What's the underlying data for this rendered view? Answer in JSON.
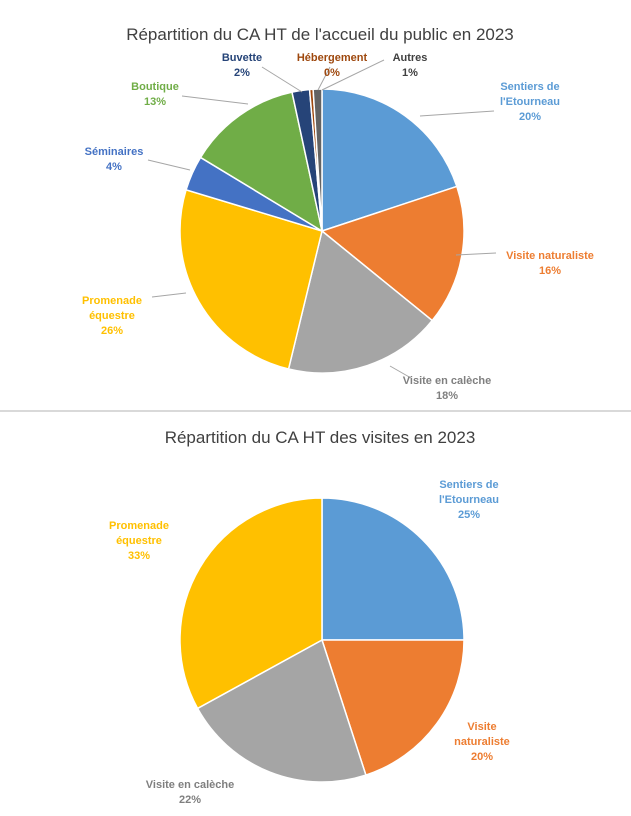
{
  "chart_data": [
    {
      "type": "pie",
      "title": "Répartition du CA HT de l'accueil du public en 2023",
      "slices": [
        {
          "label": "Sentiers de l'Etourneau",
          "lines": [
            "Sentiers de",
            "l'Etourneau"
          ],
          "value": 20,
          "pct": "20%",
          "color": "#5B9BD5"
        },
        {
          "label": "Visite naturaliste",
          "lines": [
            "Visite naturaliste"
          ],
          "value": 16,
          "pct": "16%",
          "color": "#ED7D31"
        },
        {
          "label": "Visite en calèche",
          "lines": [
            "Visite en calèche"
          ],
          "value": 18,
          "pct": "18%",
          "color": "#A5A5A5"
        },
        {
          "label": "Promenade équestre",
          "lines": [
            "Promenade",
            "équestre"
          ],
          "value": 26,
          "pct": "26%",
          "color": "#FFC000"
        },
        {
          "label": "Séminaires",
          "lines": [
            "Séminaires"
          ],
          "value": 4,
          "pct": "4%",
          "color": "#4472C4"
        },
        {
          "label": "Boutique",
          "lines": [
            "Boutique"
          ],
          "value": 13,
          "pct": "13%",
          "color": "#70AD47"
        },
        {
          "label": "Buvette",
          "lines": [
            "Buvette"
          ],
          "value": 2,
          "pct": "2%",
          "color": "#264478"
        },
        {
          "label": "Hébergement",
          "lines": [
            "Hébergement"
          ],
          "value": 0.4,
          "pct": "0%",
          "color": "#9E480E"
        },
        {
          "label": "Autres",
          "lines": [
            "Autres"
          ],
          "value": 1,
          "pct": "1%",
          "color": "#636363"
        }
      ]
    },
    {
      "type": "pie",
      "title": "Répartition du CA HT des visites en 2023",
      "slices": [
        {
          "label": "Sentiers de l'Etourneau",
          "lines": [
            "Sentiers de",
            "l'Etourneau"
          ],
          "value": 25,
          "pct": "25%",
          "color": "#5B9BD5"
        },
        {
          "label": "Visite naturaliste",
          "lines": [
            "Visite",
            "naturaliste"
          ],
          "value": 20,
          "pct": "20%",
          "color": "#ED7D31"
        },
        {
          "label": "Visite en calèche",
          "lines": [
            "Visite en calèche"
          ],
          "value": 22,
          "pct": "22%",
          "color": "#A5A5A5"
        },
        {
          "label": "Promenade équestre",
          "lines": [
            "Promenade",
            "équestre"
          ],
          "value": 33,
          "pct": "33%",
          "color": "#FFC000"
        }
      ]
    }
  ]
}
